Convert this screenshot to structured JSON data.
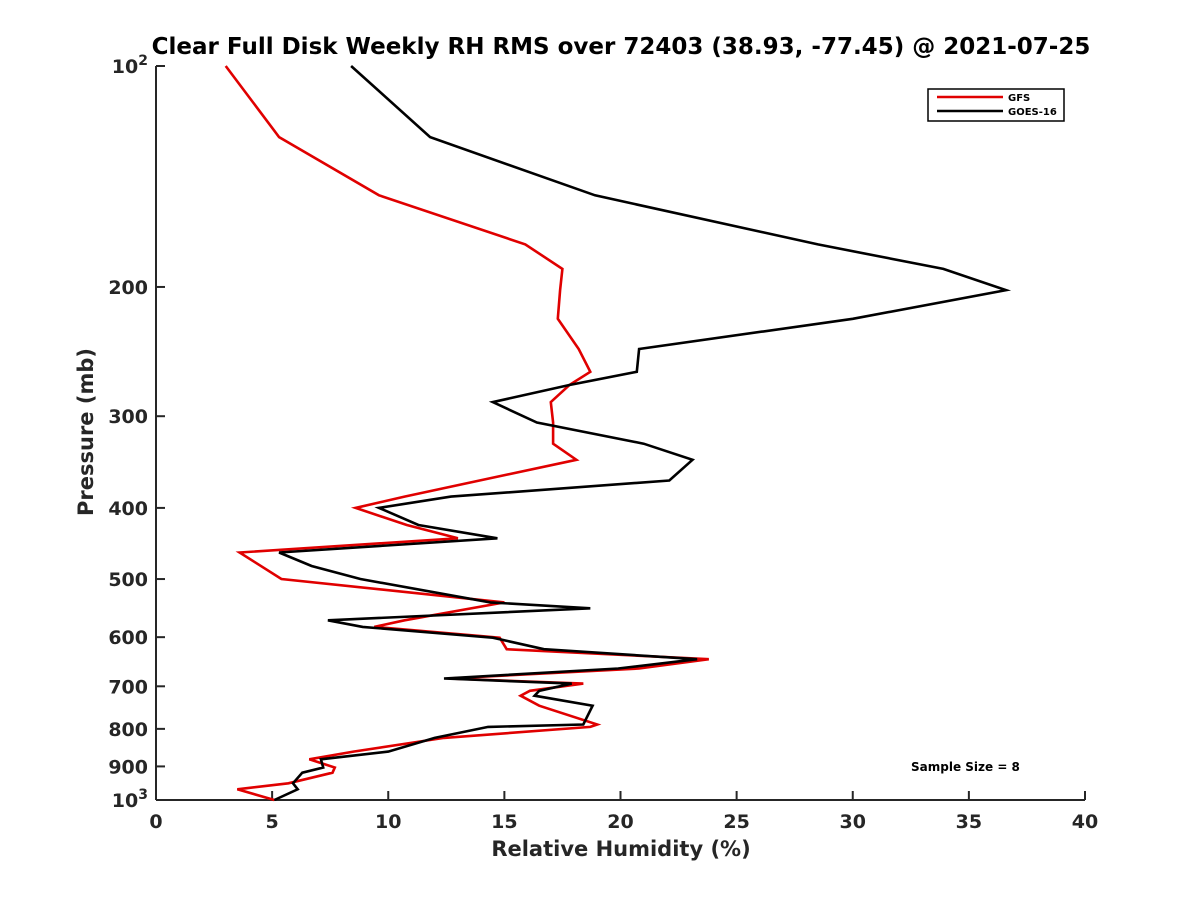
{
  "chart_data": {
    "type": "line",
    "title": "Clear Full Disk Weekly RH RMS over 72403 (38.93, -77.45) @ 2021-07-25",
    "xlabel": "Relative Humidity (%)",
    "ylabel": "Pressure (mb)",
    "xlim": [
      0,
      40
    ],
    "ylim": [
      100,
      1000
    ],
    "yscale": "log",
    "y_reversed": true,
    "grid": false,
    "x_ticks": [
      0,
      5,
      10,
      15,
      20,
      25,
      30,
      35,
      40
    ],
    "x_tick_labels": [
      "0",
      "5",
      "10",
      "15",
      "20",
      "25",
      "30",
      "35",
      "40"
    ],
    "y_ticks": [
      100,
      200,
      300,
      400,
      500,
      600,
      700,
      800,
      900,
      1000
    ],
    "y_tick_labels": [
      {
        "base": "10",
        "exp": "2"
      },
      {
        "base": "200",
        "exp": ""
      },
      {
        "base": "300",
        "exp": ""
      },
      {
        "base": "400",
        "exp": ""
      },
      {
        "base": "500",
        "exp": ""
      },
      {
        "base": "600",
        "exp": ""
      },
      {
        "base": "700",
        "exp": ""
      },
      {
        "base": "800",
        "exp": ""
      },
      {
        "base": "900",
        "exp": ""
      },
      {
        "base": "10",
        "exp": "3"
      }
    ],
    "legend_position": "top-right",
    "annotation": "Sample Size = 8",
    "series": [
      {
        "name": "GFS",
        "color": "#e00000",
        "points": [
          [
            3.0,
            100
          ],
          [
            5.3,
            125
          ],
          [
            9.6,
            150
          ],
          [
            15.9,
            175
          ],
          [
            17.5,
            189
          ],
          [
            17.4,
            202
          ],
          [
            17.3,
            221
          ],
          [
            18.2,
            243
          ],
          [
            18.7,
            261
          ],
          [
            17.8,
            272
          ],
          [
            17.0,
            287
          ],
          [
            17.1,
            306
          ],
          [
            17.1,
            327
          ],
          [
            18.1,
            344
          ],
          [
            10.7,
            386
          ],
          [
            8.6,
            400
          ],
          [
            10.8,
            422
          ],
          [
            13.0,
            440
          ],
          [
            3.6,
            460
          ],
          [
            5.4,
            500
          ],
          [
            15.0,
            538
          ],
          [
            10.7,
            569
          ],
          [
            9.4,
            581
          ],
          [
            14.8,
            601
          ],
          [
            15.1,
            623
          ],
          [
            23.8,
            643
          ],
          [
            20.8,
            662
          ],
          [
            12.6,
            683
          ],
          [
            18.4,
            694
          ],
          [
            16.1,
            710
          ],
          [
            15.7,
            721
          ],
          [
            16.5,
            744
          ],
          [
            19.0,
            789
          ],
          [
            18.7,
            795
          ],
          [
            12.4,
            823
          ],
          [
            8.5,
            859
          ],
          [
            6.6,
            880
          ],
          [
            7.7,
            903
          ],
          [
            7.6,
            918
          ],
          [
            5.7,
            949
          ],
          [
            3.5,
            967
          ],
          [
            5.1,
            1000
          ]
        ]
      },
      {
        "name": "GOES-16",
        "color": "#000000",
        "points": [
          [
            8.4,
            100
          ],
          [
            11.8,
            125
          ],
          [
            18.9,
            150
          ],
          [
            28.5,
            175
          ],
          [
            33.9,
            189
          ],
          [
            36.6,
            202
          ],
          [
            30.0,
            221
          ],
          [
            20.8,
            243
          ],
          [
            20.7,
            261
          ],
          [
            17.8,
            272
          ],
          [
            14.5,
            287
          ],
          [
            16.4,
            306
          ],
          [
            21.0,
            327
          ],
          [
            23.1,
            344
          ],
          [
            22.1,
            367
          ],
          [
            12.7,
            386
          ],
          [
            9.6,
            400
          ],
          [
            11.3,
            422
          ],
          [
            14.7,
            440
          ],
          [
            5.3,
            460
          ],
          [
            6.7,
            480
          ],
          [
            8.8,
            500
          ],
          [
            14.4,
            538
          ],
          [
            18.7,
            548
          ],
          [
            7.4,
            569
          ],
          [
            8.9,
            581
          ],
          [
            14.5,
            601
          ],
          [
            16.7,
            623
          ],
          [
            23.3,
            643
          ],
          [
            19.9,
            662
          ],
          [
            12.4,
            683
          ],
          [
            17.9,
            694
          ],
          [
            16.5,
            710
          ],
          [
            16.3,
            721
          ],
          [
            18.8,
            744
          ],
          [
            18.4,
            789
          ],
          [
            14.3,
            795
          ],
          [
            12.0,
            823
          ],
          [
            10.0,
            859
          ],
          [
            7.1,
            880
          ],
          [
            7.2,
            903
          ],
          [
            6.3,
            918
          ],
          [
            5.9,
            949
          ],
          [
            6.1,
            967
          ],
          [
            5.1,
            1000
          ]
        ]
      }
    ]
  }
}
